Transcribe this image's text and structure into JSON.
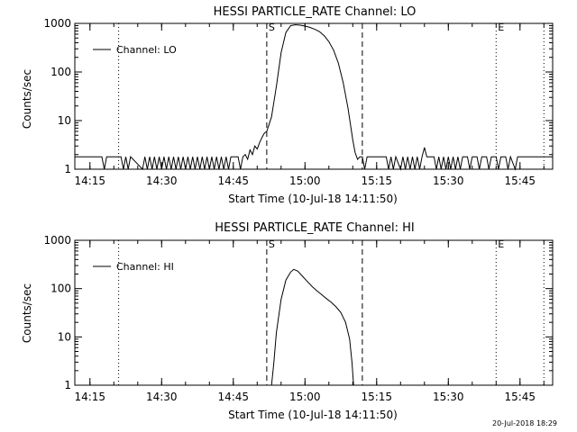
{
  "footer_timestamp": "20-Jul-2018 18:29",
  "chart_data": [
    {
      "type": "line",
      "title": "HESSI PARTICLE_RATE Channel: LO",
      "xlabel": "Start Time (10-Jul-18 14:11:50)",
      "ylabel": "Counts/sec",
      "y_scale": "log",
      "ylim": [
        1,
        1000
      ],
      "y_ticks": [
        {
          "value": 1,
          "label": "1"
        },
        {
          "value": 10,
          "label": "10"
        },
        {
          "value": 100,
          "label": "100"
        },
        {
          "value": 1000,
          "label": "1000"
        }
      ],
      "xlim": [
        "14:11:50",
        "15:51:50"
      ],
      "x_ticks": [
        "14:15",
        "14:30",
        "14:45",
        "15:00",
        "15:15",
        "15:30",
        "15:45"
      ],
      "legend": {
        "label": "Channel: LO",
        "placement": "top-left"
      },
      "markers": [
        {
          "label": "S",
          "time": "14:52",
          "style": "dashed"
        },
        {
          "label": "",
          "time": "15:12",
          "style": "dashed"
        },
        {
          "label": "",
          "time": "14:21",
          "style": "dotted"
        },
        {
          "label": "E",
          "time": "15:40",
          "style": "dotted"
        },
        {
          "label": "",
          "time": "15:50",
          "style": "dotted"
        }
      ],
      "series": [
        {
          "name": "Channel: LO",
          "baseline": 1.8,
          "points": [
            [
              "14:11:50",
              1.8
            ],
            [
              "14:17:30",
              1.8
            ],
            [
              "14:18:00",
              1.0
            ],
            [
              "14:18:30",
              1.8
            ],
            [
              "14:21:30",
              1.8
            ],
            [
              "14:22:00",
              1.0
            ],
            [
              "14:22:30",
              1.8
            ],
            [
              "14:23:00",
              1.0
            ],
            [
              "14:23:30",
              1.8
            ],
            [
              "14:26:00",
              1.0
            ],
            [
              "14:26:30",
              1.8
            ],
            [
              "14:27:00",
              1.0
            ],
            [
              "14:27:30",
              1.8
            ],
            [
              "14:28:00",
              1.0
            ],
            [
              "14:28:30",
              1.8
            ],
            [
              "14:29:00",
              1.0
            ],
            [
              "14:29:30",
              1.8
            ],
            [
              "14:30:00",
              1.0
            ],
            [
              "14:30:30",
              1.8
            ],
            [
              "14:31:00",
              1.0
            ],
            [
              "14:31:30",
              1.8
            ],
            [
              "14:32:00",
              1.0
            ],
            [
              "14:32:30",
              1.8
            ],
            [
              "14:33:00",
              1.0
            ],
            [
              "14:33:30",
              1.8
            ],
            [
              "14:34:00",
              1.0
            ],
            [
              "14:34:30",
              1.8
            ],
            [
              "14:35:00",
              1.0
            ],
            [
              "14:35:30",
              1.8
            ],
            [
              "14:36:00",
              1.0
            ],
            [
              "14:36:30",
              1.8
            ],
            [
              "14:37:00",
              1.0
            ],
            [
              "14:37:30",
              1.8
            ],
            [
              "14:38:00",
              1.0
            ],
            [
              "14:38:30",
              1.8
            ],
            [
              "14:39:00",
              1.0
            ],
            [
              "14:39:30",
              1.8
            ],
            [
              "14:40:00",
              1.0
            ],
            [
              "14:40:30",
              1.8
            ],
            [
              "14:41:00",
              1.0
            ],
            [
              "14:41:30",
              1.8
            ],
            [
              "14:42:00",
              1.0
            ],
            [
              "14:42:30",
              1.8
            ],
            [
              "14:43:00",
              1.0
            ],
            [
              "14:43:30",
              1.8
            ],
            [
              "14:44:00",
              1.0
            ],
            [
              "14:44:30",
              1.8
            ],
            [
              "14:46:00",
              1.8
            ],
            [
              "14:46:30",
              1.0
            ],
            [
              "14:47:00",
              1.8
            ],
            [
              "14:47:30",
              2.0
            ],
            [
              "14:48:00",
              1.6
            ],
            [
              "14:48:30",
              2.5
            ],
            [
              "14:49:00",
              2.0
            ],
            [
              "14:49:30",
              3.0
            ],
            [
              "14:50:00",
              2.6
            ],
            [
              "14:50:30",
              3.5
            ],
            [
              "14:51:00",
              4.5
            ],
            [
              "14:51:30",
              5.5
            ],
            [
              "14:52:00",
              6.0
            ],
            [
              "14:53:00",
              12
            ],
            [
              "14:54:00",
              50
            ],
            [
              "14:55:00",
              250
            ],
            [
              "14:56:00",
              650
            ],
            [
              "14:57:00",
              900
            ],
            [
              "14:58:00",
              940
            ],
            [
              "14:59:00",
              920
            ],
            [
              "15:00:00",
              880
            ],
            [
              "15:01:00",
              830
            ],
            [
              "15:02:00",
              760
            ],
            [
              "15:03:00",
              680
            ],
            [
              "15:04:00",
              560
            ],
            [
              "15:05:00",
              420
            ],
            [
              "15:06:00",
              280
            ],
            [
              "15:07:00",
              150
            ],
            [
              "15:08:00",
              60
            ],
            [
              "15:09:00",
              18
            ],
            [
              "15:10:00",
              4
            ],
            [
              "15:10:30",
              2.2
            ],
            [
              "15:11:00",
              1.6
            ],
            [
              "15:11:30",
              1.8
            ],
            [
              "15:12:00",
              1.8
            ],
            [
              "15:12:30",
              1.0
            ],
            [
              "15:13:00",
              1.8
            ],
            [
              "15:17:00",
              1.8
            ],
            [
              "15:17:30",
              1.0
            ],
            [
              "15:18:00",
              1.8
            ],
            [
              "15:18:30",
              1.0
            ],
            [
              "15:19:00",
              1.8
            ],
            [
              "15:20:00",
              1.0
            ],
            [
              "15:20:30",
              1.8
            ],
            [
              "15:21:00",
              1.0
            ],
            [
              "15:21:30",
              1.8
            ],
            [
              "15:22:00",
              1.0
            ],
            [
              "15:22:30",
              1.8
            ],
            [
              "15:23:00",
              1.0
            ],
            [
              "15:23:30",
              1.8
            ],
            [
              "15:24:00",
              1.0
            ],
            [
              "15:24:30",
              1.8
            ],
            [
              "15:25:00",
              2.8
            ],
            [
              "15:25:30",
              1.8
            ],
            [
              "15:27:00",
              1.8
            ],
            [
              "15:27:30",
              1.0
            ],
            [
              "15:28:00",
              1.8
            ],
            [
              "15:28:30",
              1.0
            ],
            [
              "15:29:00",
              1.8
            ],
            [
              "15:29:30",
              1.0
            ],
            [
              "15:30:00",
              1.8
            ],
            [
              "15:30:30",
              1.0
            ],
            [
              "15:31:00",
              1.8
            ],
            [
              "15:31:30",
              1.0
            ],
            [
              "15:32:00",
              1.8
            ],
            [
              "15:32:30",
              1.0
            ],
            [
              "15:33:00",
              1.8
            ],
            [
              "15:34:00",
              1.8
            ],
            [
              "15:34:30",
              1.0
            ],
            [
              "15:35:00",
              1.8
            ],
            [
              "15:36:00",
              1.8
            ],
            [
              "15:36:30",
              1.0
            ],
            [
              "15:37:00",
              1.8
            ],
            [
              "15:38:00",
              1.8
            ],
            [
              "15:38:30",
              1.0
            ],
            [
              "15:39:00",
              1.8
            ],
            [
              "15:40:00",
              1.8
            ],
            [
              "15:40:30",
              1.0
            ],
            [
              "15:41:00",
              1.8
            ],
            [
              "15:42:00",
              1.8
            ],
            [
              "15:42:30",
              1.0
            ],
            [
              "15:43:00",
              1.8
            ],
            [
              "15:44:00",
              1.0
            ],
            [
              "15:44:30",
              1.8
            ],
            [
              "15:51:50",
              1.8
            ]
          ]
        }
      ]
    },
    {
      "type": "line",
      "title": "HESSI PARTICLE_RATE Channel: HI",
      "xlabel": "Start Time (10-Jul-18 14:11:50)",
      "ylabel": "Counts/sec",
      "y_scale": "log",
      "ylim": [
        1,
        1000
      ],
      "y_ticks": [
        {
          "value": 1,
          "label": "1"
        },
        {
          "value": 10,
          "label": "10"
        },
        {
          "value": 100,
          "label": "100"
        },
        {
          "value": 1000,
          "label": "1000"
        }
      ],
      "xlim": [
        "14:11:50",
        "15:51:50"
      ],
      "x_ticks": [
        "14:15",
        "14:30",
        "14:45",
        "15:00",
        "15:15",
        "15:30",
        "15:45"
      ],
      "legend": {
        "label": "Channel: HI",
        "placement": "top-left"
      },
      "markers": [
        {
          "label": "S",
          "time": "14:52",
          "style": "dashed"
        },
        {
          "label": "",
          "time": "15:12",
          "style": "dashed"
        },
        {
          "label": "",
          "time": "14:21",
          "style": "dotted"
        },
        {
          "label": "E",
          "time": "15:40",
          "style": "dotted"
        },
        {
          "label": "",
          "time": "15:50",
          "style": "dotted"
        }
      ],
      "series": [
        {
          "name": "Channel: HI",
          "points": [
            [
              "14:53:00",
              1.0
            ],
            [
              "14:53:30",
              3
            ],
            [
              "14:54:00",
              12
            ],
            [
              "14:55:00",
              60
            ],
            [
              "14:56:00",
              150
            ],
            [
              "14:57:00",
              220
            ],
            [
              "14:57:40",
              250
            ],
            [
              "14:58:30",
              230
            ],
            [
              "14:59:30",
              180
            ],
            [
              "15:00:30",
              140
            ],
            [
              "15:01:30",
              110
            ],
            [
              "15:02:30",
              90
            ],
            [
              "15:03:30",
              75
            ],
            [
              "15:04:30",
              62
            ],
            [
              "15:05:30",
              52
            ],
            [
              "15:06:30",
              42
            ],
            [
              "15:07:30",
              32
            ],
            [
              "15:08:30",
              20
            ],
            [
              "15:09:20",
              9
            ],
            [
              "15:09:50",
              3
            ],
            [
              "15:10:10",
              1.0
            ]
          ]
        }
      ]
    }
  ]
}
